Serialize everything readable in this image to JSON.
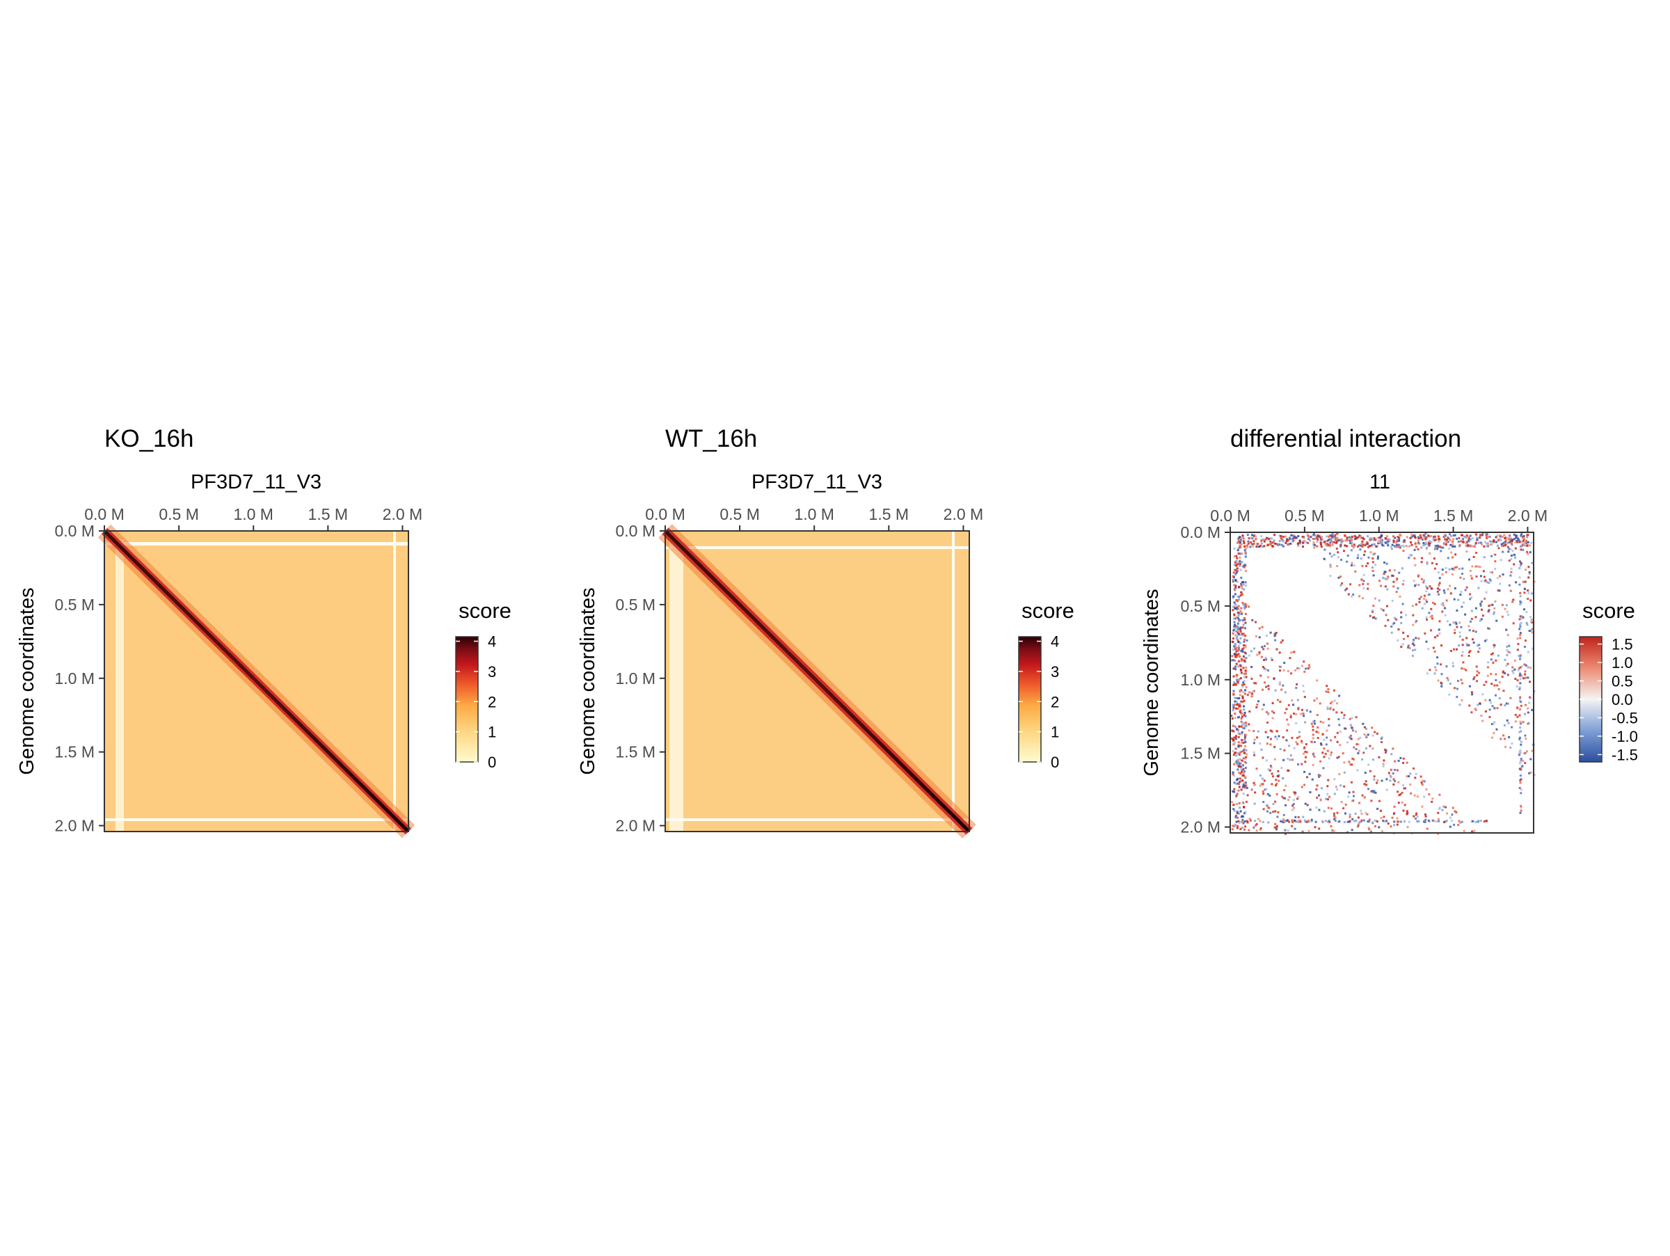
{
  "chart_data": [
    {
      "type": "heatmap",
      "title": "KO_16h",
      "subtitle": "PF3D7_11_V3",
      "xlabel": "",
      "ylabel": "Genome coordinates",
      "x_ticks": [
        "0.0 M",
        "0.5 M",
        "1.0 M",
        "1.5 M",
        "2.0 M"
      ],
      "y_ticks": [
        "0.0 M",
        "0.5 M",
        "1.0 M",
        "1.5 M",
        "2.0 M"
      ],
      "x_tick_values": [
        0,
        0.5,
        1.0,
        1.5,
        2.0
      ],
      "axis_range": [
        0,
        2.04
      ],
      "legend": {
        "title": "score",
        "ticks": [
          "4",
          "3",
          "2",
          "1",
          "0"
        ],
        "tick_values": [
          4,
          3,
          2,
          1,
          0
        ],
        "range": [
          0,
          4.15
        ]
      },
      "palette": [
        "#fff7bc",
        "#fee391",
        "#fec44f",
        "#fe9929",
        "#ec7014",
        "#e31a1c",
        "#b10026",
        "#67000d",
        "#2b0000"
      ]
    },
    {
      "type": "heatmap",
      "title": "WT_16h",
      "subtitle": "PF3D7_11_V3",
      "xlabel": "",
      "ylabel": "Genome coordinates",
      "x_ticks": [
        "0.0 M",
        "0.5 M",
        "1.0 M",
        "1.5 M",
        "2.0 M"
      ],
      "y_ticks": [
        "0.0 M",
        "0.5 M",
        "1.0 M",
        "1.5 M",
        "2.0 M"
      ],
      "x_tick_values": [
        0,
        0.5,
        1.0,
        1.5,
        2.0
      ],
      "axis_range": [
        0,
        2.04
      ],
      "legend": {
        "title": "score",
        "ticks": [
          "4",
          "3",
          "2",
          "1",
          "0"
        ],
        "tick_values": [
          4,
          3,
          2,
          1,
          0
        ],
        "range": [
          0,
          4.15
        ]
      },
      "palette": [
        "#fff7bc",
        "#fee391",
        "#fec44f",
        "#fe9929",
        "#ec7014",
        "#e31a1c",
        "#b10026",
        "#67000d",
        "#2b0000"
      ]
    },
    {
      "type": "heatmap",
      "title": "differential interaction",
      "subtitle": "11",
      "xlabel": "",
      "ylabel": "Genome coordinates",
      "x_ticks": [
        "0.0 M",
        "0.5 M",
        "1.0 M",
        "1.5 M",
        "2.0 M"
      ],
      "y_ticks": [
        "0.0 M",
        "0.5 M",
        "1.0 M",
        "1.5 M",
        "2.0 M"
      ],
      "x_tick_values": [
        0,
        0.5,
        1.0,
        1.5,
        2.0
      ],
      "axis_range": [
        0,
        2.04
      ],
      "legend": {
        "title": "score",
        "ticks": [
          "1.5",
          "1.0",
          "0.5",
          "0.0",
          "-0.5",
          "-1.0",
          "-1.5"
        ],
        "tick_values": [
          1.5,
          1.0,
          0.5,
          0.0,
          -0.5,
          -1.0,
          -1.5
        ],
        "range": [
          -1.7,
          1.7
        ]
      },
      "palette": [
        "#2c4f9e",
        "#6c8fd0",
        "#b4c6e8",
        "#f4f4f4",
        "#f2b6a4",
        "#e56a51",
        "#c0241b"
      ]
    }
  ]
}
